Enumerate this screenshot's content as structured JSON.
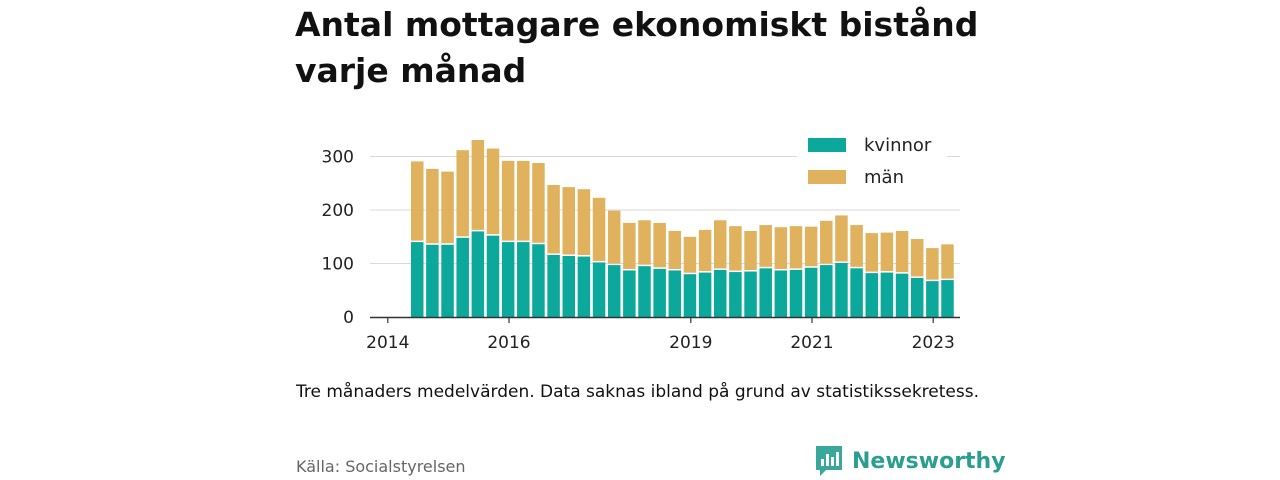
{
  "title": "Antal mottagare ekonomiskt bistånd varje månad",
  "note": "Tre månaders medelvärden. Data saknas ibland på grund av statistikssekretess.",
  "source": "Källa: Socialstyrelsen",
  "brand": {
    "name": "Newsworthy",
    "icon": "newsworthy-logo-icon"
  },
  "colors": {
    "kvinnor": "#0ba89b",
    "man": "#e0b25e",
    "grid": "#d9d9d9",
    "axis": "#333333"
  },
  "chart_data": {
    "type": "bar",
    "stacked": true,
    "x_ticks": [
      "2014",
      "2016",
      "2019",
      "2021",
      "2023"
    ],
    "y_ticks": [
      "0",
      "100",
      "200",
      "300"
    ],
    "ylim": [
      0,
      330
    ],
    "grid": true,
    "legend_position": "top-right",
    "x": [
      "2014-05",
      "2014-08",
      "2014-11",
      "2015-02",
      "2015-05",
      "2015-08",
      "2015-11",
      "2016-02",
      "2016-05",
      "2016-08",
      "2016-11",
      "2017-02",
      "2017-05",
      "2017-08",
      "2017-11",
      "2018-02",
      "2018-05",
      "2018-08",
      "2018-11",
      "2019-02",
      "2019-05",
      "2019-08",
      "2019-11",
      "2020-02",
      "2020-05",
      "2020-08",
      "2020-11",
      "2021-02",
      "2021-05",
      "2021-08",
      "2021-11",
      "2022-02",
      "2022-05",
      "2022-08",
      "2022-11",
      "2023-02"
    ],
    "series": [
      {
        "name": "kvinnor",
        "color": "#0ba89b",
        "values": [
          140,
          135,
          135,
          148,
          160,
          152,
          140,
          140,
          136,
          116,
          114,
          113,
          102,
          97,
          87,
          95,
          90,
          87,
          80,
          83,
          88,
          84,
          85,
          91,
          87,
          88,
          92,
          97,
          101,
          91,
          82,
          83,
          81,
          73,
          67,
          69
        ]
      },
      {
        "name": "män",
        "color": "#e0b25e",
        "values": [
          148,
          139,
          134,
          161,
          168,
          160,
          149,
          149,
          149,
          128,
          126,
          123,
          118,
          99,
          86,
          83,
          83,
          71,
          67,
          77,
          90,
          83,
          73,
          78,
          78,
          79,
          74,
          80,
          86,
          78,
          72,
          72,
          77,
          70,
          59,
          64
        ]
      }
    ]
  }
}
